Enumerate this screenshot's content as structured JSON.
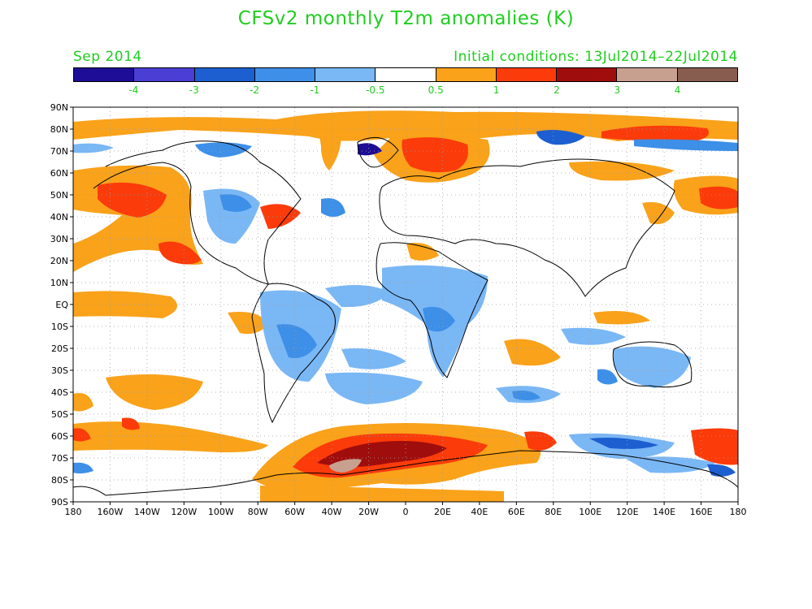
{
  "title": "CFSv2 monthly T2m anomalies (K)",
  "forecast_month": "Sep 2014",
  "initial_conditions": "Initial conditions: 13Jul2014–22Jul2014",
  "text_color": "#1fce1f",
  "colorbar": {
    "colors": [
      "#1e0d96",
      "#4a3ed4",
      "#1d5fd0",
      "#3d8fe8",
      "#7ab7f5",
      "#ffffff",
      "#f9a21a",
      "#fb3b0a",
      "#a00d0d",
      "#c8a090",
      "#875d50"
    ],
    "labels": [
      "-4",
      "-3",
      "-2",
      "-1",
      "-0.5",
      "0.5",
      "1",
      "2",
      "3",
      "4"
    ]
  },
  "lat_labels": [
    "90N",
    "80N",
    "70N",
    "60N",
    "50N",
    "40N",
    "30N",
    "20N",
    "10N",
    "EQ",
    "10S",
    "20S",
    "30S",
    "40S",
    "50S",
    "60S",
    "70S",
    "80S",
    "90S"
  ],
  "lon_labels": [
    "180",
    "160W",
    "140W",
    "120W",
    "100W",
    "80W",
    "60W",
    "40W",
    "20W",
    "0",
    "20E",
    "40E",
    "60E",
    "80E",
    "100E",
    "120E",
    "140E",
    "160E",
    "180"
  ],
  "grid": true
}
